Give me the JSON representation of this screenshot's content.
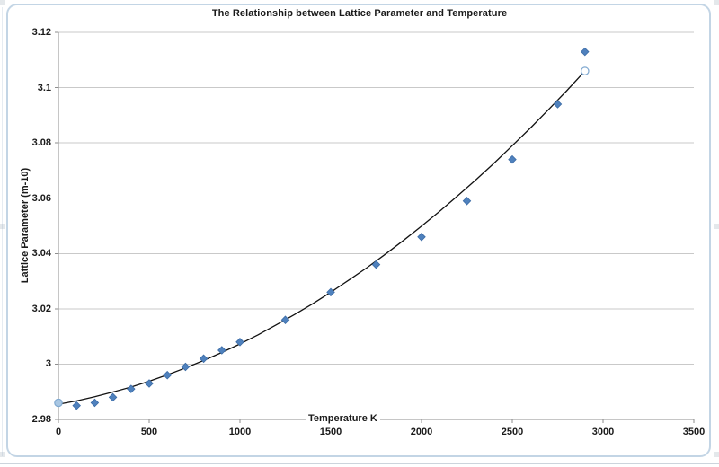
{
  "chart_data": {
    "type": "scatter",
    "title": "The Relationship between Lattice Parameter and Temperature",
    "xlabel": "Temperature K",
    "ylabel": "Lattice Parameter (m-10)",
    "xlim": [
      0,
      3500
    ],
    "ylim": [
      2.98,
      3.12
    ],
    "xticks": [
      0,
      500,
      1000,
      1500,
      2000,
      2500,
      3000,
      3500
    ],
    "xtick_labels": [
      "0",
      "500",
      "1000",
      "1500",
      "2000",
      "2500",
      "3000",
      "3500"
    ],
    "yticks": [
      2.98,
      3.0,
      3.02,
      3.04,
      3.06,
      3.08,
      3.1,
      3.12
    ],
    "ytick_labels": [
      "2.98",
      "3",
      "3.02",
      "3.04",
      "3.06",
      "3.08",
      "3.1",
      "3.12"
    ],
    "grid": "horizontal-gridlines-only",
    "legend": "none",
    "series": [
      {
        "name": "measured-lattice-parameter-points",
        "type": "scatter",
        "marker": "diamond",
        "x": [
          100,
          200,
          300,
          400,
          500,
          600,
          700,
          800,
          900,
          1000,
          1250,
          1500,
          1750,
          2000,
          2250,
          2500,
          2750,
          2900
        ],
        "y": [
          2.985,
          2.986,
          2.988,
          2.991,
          2.993,
          2.996,
          2.999,
          3.002,
          3.005,
          3.008,
          3.016,
          3.026,
          3.036,
          3.046,
          3.059,
          3.074,
          3.094,
          3.113
        ]
      },
      {
        "name": "fitted-trend-curve",
        "type": "line",
        "x": [
          0,
          100,
          200,
          300,
          400,
          500,
          600,
          700,
          800,
          900,
          1000,
          1100,
          1200,
          1300,
          1400,
          1500,
          1600,
          1700,
          1800,
          1900,
          2000,
          2100,
          2200,
          2300,
          2400,
          2500,
          2600,
          2700,
          2800,
          2900
        ],
        "y": [
          2.9855,
          2.9867,
          2.9882,
          2.9899,
          2.9917,
          2.9938,
          2.9961,
          2.9986,
          3.0013,
          3.0042,
          3.0073,
          3.0106,
          3.0142,
          3.0179,
          3.0218,
          3.026,
          3.0304,
          3.0349,
          3.0397,
          3.0447,
          3.0499,
          3.0553,
          3.0609,
          3.0667,
          3.0727,
          3.079,
          3.0854,
          3.0921,
          3.0989,
          3.106
        ]
      },
      {
        "name": "curve-endpoint-markers",
        "type": "scatter",
        "marker": "circle",
        "points": [
          {
            "x": 0,
            "y": 2.986,
            "fill": "#a9c7e3"
          },
          {
            "x": 2900,
            "y": 3.106,
            "fill": "#ffffff"
          }
        ]
      }
    ],
    "colors": {
      "marker_fill": "#4f81bd",
      "marker_edge": "#3c6ca6",
      "trend_line": "#111111",
      "endpoint_edge": "#7fa8d0",
      "gridline": "#c9c9c9",
      "axis": "#8e8e8e",
      "frame_border": "#c3d5e5",
      "text": "#1a1a1a"
    }
  }
}
